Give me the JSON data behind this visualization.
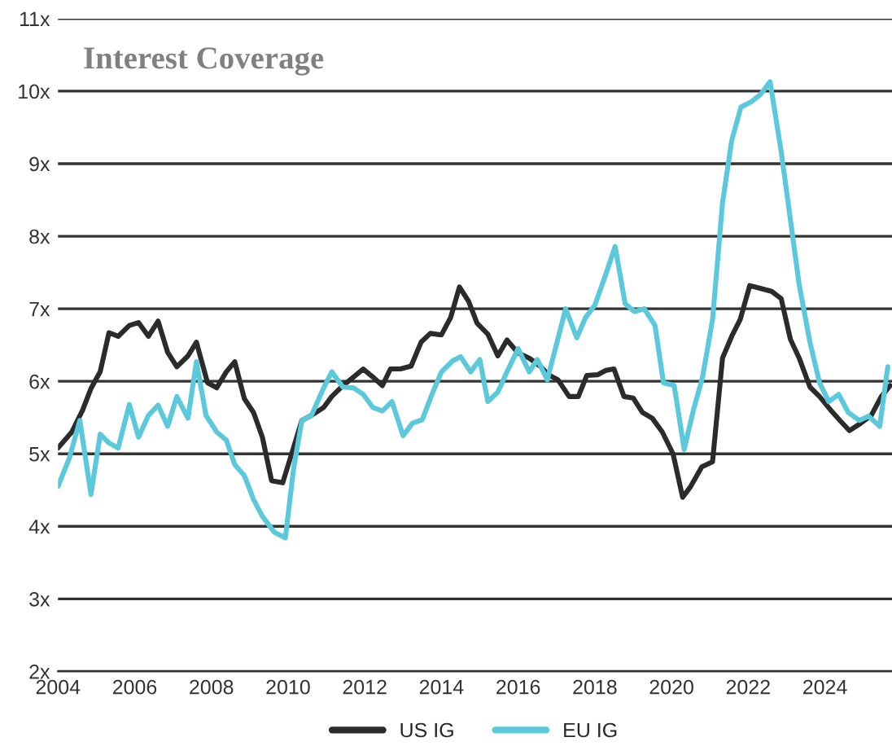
{
  "chart_data": {
    "type": "line",
    "title": "Interest Coverage",
    "xlim": [
      2004,
      2025.75
    ],
    "xticks": [
      2004,
      2006,
      2008,
      2010,
      2012,
      2014,
      2016,
      2018,
      2020,
      2022,
      2024
    ],
    "ylim": [
      2,
      11
    ],
    "yticks": [
      {
        "value": 2,
        "label": "2x"
      },
      {
        "value": 3,
        "label": "3x"
      },
      {
        "value": 4,
        "label": "4x"
      },
      {
        "value": 5,
        "label": "5x"
      },
      {
        "value": 6,
        "label": "6x"
      },
      {
        "value": 7,
        "label": "7x"
      },
      {
        "value": 8,
        "label": "8x"
      },
      {
        "value": 9,
        "label": "9x"
      },
      {
        "value": 10,
        "label": "10x"
      },
      {
        "value": 11,
        "label": "11x"
      }
    ],
    "grid": "y",
    "legend": "bottom",
    "marker": "none",
    "line_style": "solid",
    "series": [
      {
        "name": "US IG",
        "color": "#2b2b2b",
        "x": [
          2004.0,
          2004.36,
          2004.64,
          2004.86,
          2005.1,
          2005.33,
          2005.57,
          2005.86,
          2006.1,
          2006.36,
          2006.61,
          2006.86,
          2007.1,
          2007.39,
          2007.61,
          2007.9,
          2008.14,
          2008.39,
          2008.61,
          2008.86,
          2009.1,
          2009.33,
          2009.57,
          2009.86,
          2010.14,
          2010.36,
          2010.61,
          2010.93,
          2011.14,
          2011.43,
          2011.71,
          2011.96,
          2012.21,
          2012.46,
          2012.67,
          2012.93,
          2013.21,
          2013.47,
          2013.71,
          2014.0,
          2014.24,
          2014.47,
          2014.71,
          2014.93,
          2015.21,
          2015.47,
          2015.71,
          2016.0,
          2016.29,
          2016.57,
          2016.79,
          2017.04,
          2017.33,
          2017.57,
          2017.79,
          2018.07,
          2018.29,
          2018.5,
          2018.76,
          2019.0,
          2019.24,
          2019.5,
          2019.76,
          2020.04,
          2020.29,
          2020.5,
          2020.79,
          2021.07,
          2021.33,
          2021.57,
          2021.79,
          2022.04,
          2022.33,
          2022.61,
          2022.86,
          2023.1,
          2023.33,
          2023.61,
          2023.86,
          2024.14,
          2024.39,
          2024.64,
          2024.93,
          2025.21,
          2025.47,
          2025.7
        ],
        "values": [
          5.08,
          5.3,
          5.6,
          5.9,
          6.13,
          6.67,
          6.62,
          6.77,
          6.81,
          6.62,
          6.83,
          6.4,
          6.2,
          6.35,
          6.54,
          5.98,
          5.91,
          6.13,
          6.27,
          5.76,
          5.57,
          5.23,
          4.63,
          4.6,
          5.08,
          5.46,
          5.53,
          5.64,
          5.79,
          5.94,
          6.06,
          6.17,
          6.06,
          5.94,
          6.17,
          6.17,
          6.21,
          6.54,
          6.66,
          6.64,
          6.88,
          7.3,
          7.1,
          6.8,
          6.65,
          6.35,
          6.57,
          6.39,
          6.32,
          6.21,
          6.09,
          6.02,
          5.79,
          5.79,
          6.08,
          6.09,
          6.15,
          6.17,
          5.79,
          5.77,
          5.57,
          5.49,
          5.3,
          5.0,
          4.4,
          4.55,
          4.82,
          4.89,
          6.32,
          6.62,
          6.85,
          7.32,
          7.28,
          7.24,
          7.14,
          6.58,
          6.32,
          5.92,
          5.79,
          5.61,
          5.46,
          5.32,
          5.42,
          5.53,
          5.79,
          5.94
        ]
      },
      {
        "name": "EU IG",
        "color": "#5bc8dc",
        "x": [
          2004.0,
          2004.29,
          2004.57,
          2004.86,
          2005.1,
          2005.33,
          2005.57,
          2005.86,
          2006.1,
          2006.36,
          2006.61,
          2006.86,
          2007.1,
          2007.39,
          2007.61,
          2007.86,
          2008.14,
          2008.39,
          2008.61,
          2008.86,
          2009.1,
          2009.33,
          2009.64,
          2009.93,
          2010.14,
          2010.36,
          2010.61,
          2010.93,
          2011.14,
          2011.43,
          2011.71,
          2011.96,
          2012.21,
          2012.46,
          2012.71,
          2013.0,
          2013.24,
          2013.5,
          2013.76,
          2014.0,
          2014.29,
          2014.5,
          2014.76,
          2015.0,
          2015.21,
          2015.47,
          2015.71,
          2016.0,
          2016.29,
          2016.5,
          2016.76,
          2017.0,
          2017.24,
          2017.53,
          2017.76,
          2018.0,
          2018.29,
          2018.53,
          2018.79,
          2019.04,
          2019.29,
          2019.57,
          2019.79,
          2020.07,
          2020.33,
          2020.57,
          2020.81,
          2021.07,
          2021.33,
          2021.57,
          2021.81,
          2022.07,
          2022.33,
          2022.57,
          2022.86,
          2023.1,
          2023.33,
          2023.61,
          2023.86,
          2024.1,
          2024.36,
          2024.61,
          2024.9,
          2025.14,
          2025.43,
          2025.64
        ],
        "values": [
          4.55,
          4.93,
          5.46,
          4.44,
          5.27,
          5.15,
          5.08,
          5.68,
          5.23,
          5.53,
          5.67,
          5.38,
          5.79,
          5.49,
          6.27,
          5.53,
          5.3,
          5.19,
          4.85,
          4.7,
          4.37,
          4.14,
          3.92,
          3.84,
          4.78,
          5.46,
          5.53,
          5.91,
          6.13,
          5.92,
          5.91,
          5.82,
          5.64,
          5.59,
          5.72,
          5.25,
          5.42,
          5.47,
          5.83,
          6.13,
          6.28,
          6.34,
          6.13,
          6.3,
          5.72,
          5.85,
          6.13,
          6.45,
          6.13,
          6.3,
          6.02,
          6.51,
          7.0,
          6.6,
          6.88,
          7.05,
          7.48,
          7.86,
          7.07,
          6.96,
          7.0,
          6.77,
          5.98,
          5.94,
          5.06,
          5.6,
          6.06,
          6.85,
          8.46,
          9.32,
          9.78,
          9.85,
          9.96,
          10.13,
          9.17,
          8.23,
          7.33,
          6.54,
          5.98,
          5.72,
          5.82,
          5.57,
          5.46,
          5.52,
          5.38,
          6.2
        ]
      }
    ]
  }
}
